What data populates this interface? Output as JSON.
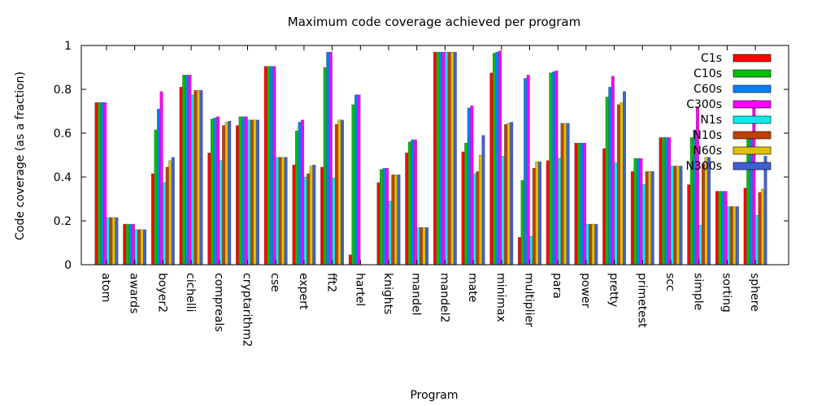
{
  "chart_data": {
    "type": "bar",
    "title": "Maximum code coverage achieved per program",
    "xlabel": "Program",
    "ylabel": "Code coverage (as a fraction)",
    "ylim": [
      0,
      1
    ],
    "yticks": [
      "0",
      "0.2",
      "0.4",
      "0.6",
      "0.8",
      "1"
    ],
    "legend_position": "top-right",
    "categories": [
      "atom",
      "awards",
      "boyer2",
      "cichelli",
      "compreals",
      "cryptarithm2",
      "cse",
      "expert",
      "fft2",
      "hartel",
      "knights",
      "mandel",
      "mandel2",
      "mate",
      "minimax",
      "multiplier",
      "para",
      "power",
      "pretty",
      "primetest",
      "scc",
      "simple",
      "sorting",
      "sphere"
    ],
    "series": [
      {
        "name": "C1s",
        "color": "#ff0000",
        "values": [
          0.74,
          0.185,
          0.415,
          0.81,
          0.51,
          0.635,
          0.905,
          0.455,
          0.445,
          0.045,
          0.375,
          0.51,
          0.97,
          0.515,
          0.875,
          0.125,
          0.475,
          0.555,
          0.53,
          0.425,
          0.58,
          0.365,
          0.335,
          0.35
        ]
      },
      {
        "name": "C10s",
        "color": "#00c000",
        "values": [
          0.74,
          0.185,
          0.615,
          0.865,
          0.665,
          0.675,
          0.905,
          0.61,
          0.9,
          0.73,
          0.435,
          0.56,
          0.97,
          0.555,
          0.965,
          0.385,
          0.875,
          0.555,
          0.765,
          0.485,
          0.58,
          0.58,
          0.335,
          0.6
        ]
      },
      {
        "name": "C60s",
        "color": "#0080ff",
        "values": [
          0.74,
          0.185,
          0.71,
          0.865,
          0.67,
          0.675,
          0.905,
          0.65,
          0.97,
          0.775,
          0.44,
          0.57,
          0.97,
          0.715,
          0.97,
          0.85,
          0.88,
          0.555,
          0.81,
          0.485,
          0.58,
          0.615,
          0.335,
          0.6
        ]
      },
      {
        "name": "C300s",
        "color": "#ff00ff",
        "values": [
          0.74,
          0.185,
          0.79,
          0.865,
          0.675,
          0.675,
          0.905,
          0.66,
          0.97,
          0.775,
          0.44,
          0.57,
          0.97,
          0.725,
          0.975,
          0.865,
          0.885,
          0.555,
          0.86,
          0.485,
          0.58,
          0.72,
          0.335,
          0.75
        ]
      },
      {
        "name": "N1s",
        "color": "#00eeee",
        "values": [
          0.215,
          0.16,
          0.375,
          0.775,
          0.475,
          0.66,
          0.49,
          0.4,
          0.395,
          0.0,
          0.29,
          0.17,
          0.97,
          0.415,
          0.495,
          0.13,
          0.485,
          0.185,
          0.465,
          0.365,
          0.45,
          0.18,
          0.265,
          0.225
        ]
      },
      {
        "name": "N10s",
        "color": "#c04000",
        "values": [
          0.215,
          0.16,
          0.445,
          0.795,
          0.635,
          0.66,
          0.49,
          0.415,
          0.64,
          0.0,
          0.41,
          0.17,
          0.97,
          0.425,
          0.64,
          0.44,
          0.645,
          0.185,
          0.73,
          0.425,
          0.45,
          0.46,
          0.265,
          0.33
        ]
      },
      {
        "name": "N60s",
        "color": "#e0c000",
        "values": [
          0.215,
          0.16,
          0.475,
          0.795,
          0.65,
          0.66,
          0.49,
          0.45,
          0.66,
          0.0,
          0.41,
          0.17,
          0.97,
          0.5,
          0.645,
          0.47,
          0.645,
          0.185,
          0.74,
          0.425,
          0.45,
          0.49,
          0.265,
          0.345
        ]
      },
      {
        "name": "N300s",
        "color": "#4060d0",
        "values": [
          0.215,
          0.16,
          0.49,
          0.795,
          0.655,
          0.66,
          0.49,
          0.455,
          0.66,
          0.0,
          0.41,
          0.17,
          0.97,
          0.59,
          0.65,
          0.47,
          0.645,
          0.185,
          0.79,
          0.425,
          0.45,
          0.49,
          0.265,
          0.495
        ]
      }
    ]
  }
}
